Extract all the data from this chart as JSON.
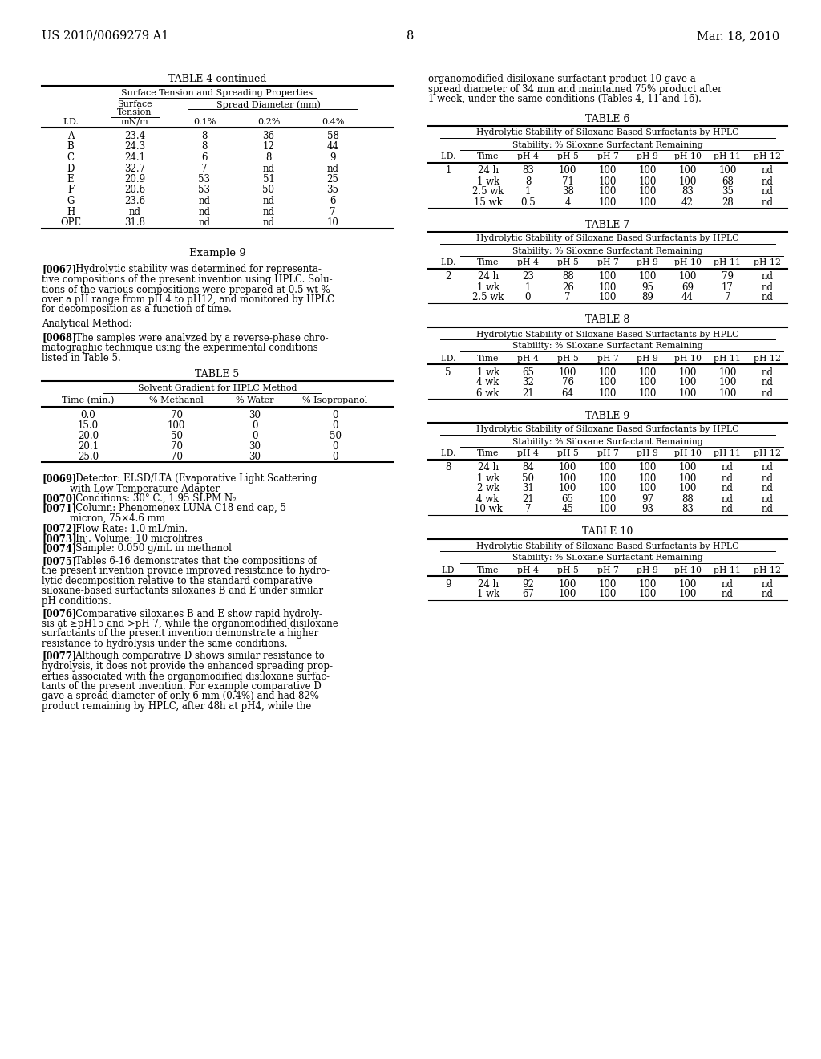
{
  "header_left": "US 2010/0069279 A1",
  "header_right": "Mar. 18, 2010",
  "page_number": "8",
  "background_color": "#ffffff",
  "table4_title": "TABLE 4-continued",
  "table4_subtitle": "Surface Tension and Spreading Properties",
  "table4_rows": [
    [
      "A",
      "23.4",
      "8",
      "36",
      "58"
    ],
    [
      "B",
      "24.3",
      "8",
      "12",
      "44"
    ],
    [
      "C",
      "24.1",
      "6",
      "8",
      "9"
    ],
    [
      "D",
      "32.7",
      "7",
      "nd",
      "nd"
    ],
    [
      "E",
      "20.9",
      "53",
      "51",
      "25"
    ],
    [
      "F",
      "20.6",
      "53",
      "50",
      "35"
    ],
    [
      "G",
      "23.6",
      "nd",
      "nd",
      "6"
    ],
    [
      "H",
      "nd",
      "nd",
      "nd",
      "7"
    ],
    [
      "OPE",
      "31.8",
      "nd",
      "nd",
      "10"
    ]
  ],
  "example9_title": "Example 9",
  "table5_title": "TABLE 5",
  "table5_subtitle": "Solvent Gradient for HPLC Method",
  "table5_col_headers": [
    "Time (min.)",
    "% Methanol",
    "% Water",
    "% Isopropanol"
  ],
  "table5_rows": [
    [
      "0.0",
      "70",
      "30",
      "0"
    ],
    [
      "15.0",
      "100",
      "0",
      "0"
    ],
    [
      "20.0",
      "50",
      "0",
      "50"
    ],
    [
      "20.1",
      "70",
      "30",
      "0"
    ],
    [
      "25.0",
      "70",
      "30",
      "0"
    ]
  ],
  "right_para_intro_lines": [
    "organomodified disiloxane surfactant product 10 gave a",
    "spread diameter of 34 mm and maintained 75% product after",
    "1 week, under the same conditions (Tables 4, 11 and 16)."
  ],
  "table6_title": "TABLE 6",
  "table6_subtitle": "Hydrolytic Stability of Siloxane Based Surfactants by HPLC",
  "table6_sub2": "Stability: % Siloxane Surfactant Remaining",
  "table6_col_headers": [
    "I.D.",
    "Time",
    "pH 4",
    "pH 5",
    "pH 7",
    "pH 9",
    "pH 10",
    "pH 11",
    "pH 12"
  ],
  "table6_rows": [
    [
      "1",
      "24 h",
      "83",
      "100",
      "100",
      "100",
      "100",
      "100",
      "nd"
    ],
    [
      "",
      "1 wk",
      "8",
      "71",
      "100",
      "100",
      "100",
      "68",
      "nd"
    ],
    [
      "",
      "2.5 wk",
      "1",
      "38",
      "100",
      "100",
      "83",
      "35",
      "nd"
    ],
    [
      "",
      "15 wk",
      "0.5",
      "4",
      "100",
      "100",
      "42",
      "28",
      "nd"
    ]
  ],
  "table7_title": "TABLE 7",
  "table7_subtitle": "Hydrolytic Stability of Siloxane Based Surfactants by HPLC",
  "table7_sub2": "Stability: % Siloxane Surfactant Remaining",
  "table7_col_headers": [
    "I.D.",
    "Time",
    "pH 4",
    "pH 5",
    "pH 7",
    "pH 9",
    "pH 10",
    "pH 11",
    "pH 12"
  ],
  "table7_rows": [
    [
      "2",
      "24 h",
      "23",
      "88",
      "100",
      "100",
      "100",
      "79",
      "nd"
    ],
    [
      "",
      "1 wk",
      "1",
      "26",
      "100",
      "95",
      "69",
      "17",
      "nd"
    ],
    [
      "",
      "2.5 wk",
      "0",
      "7",
      "100",
      "89",
      "44",
      "7",
      "nd"
    ]
  ],
  "table8_title": "TABLE 8",
  "table8_subtitle": "Hydrolytic Stability of Siloxane Based Surfactants by HPLC",
  "table8_sub2": "Stability: % Siloxane Surfactant Remaining",
  "table8_col_headers": [
    "I.D.",
    "Time",
    "pH 4",
    "pH 5",
    "pH 7",
    "pH 9",
    "pH 10",
    "pH 11",
    "pH 12"
  ],
  "table8_rows": [
    [
      "5",
      "1 wk",
      "65",
      "100",
      "100",
      "100",
      "100",
      "100",
      "nd"
    ],
    [
      "",
      "4 wk",
      "32",
      "76",
      "100",
      "100",
      "100",
      "100",
      "nd"
    ],
    [
      "",
      "6 wk",
      "21",
      "64",
      "100",
      "100",
      "100",
      "100",
      "nd"
    ]
  ],
  "table9_title": "TABLE 9",
  "table9_subtitle": "Hydrolytic Stability of Siloxane Based Surfactants by HPLC",
  "table9_sub2": "Stability: % Siloxane Surfactant Remaining",
  "table9_col_headers": [
    "I.D.",
    "Time",
    "pH 4",
    "pH 5",
    "pH 7",
    "pH 9",
    "pH 10",
    "pH 11",
    "pH 12"
  ],
  "table9_rows": [
    [
      "8",
      "24 h",
      "84",
      "100",
      "100",
      "100",
      "100",
      "nd",
      "nd"
    ],
    [
      "",
      "1 wk",
      "50",
      "100",
      "100",
      "100",
      "100",
      "nd",
      "nd"
    ],
    [
      "",
      "2 wk",
      "31",
      "100",
      "100",
      "100",
      "100",
      "nd",
      "nd"
    ],
    [
      "",
      "4 wk",
      "21",
      "65",
      "100",
      "97",
      "88",
      "nd",
      "nd"
    ],
    [
      "",
      "10 wk",
      "7",
      "45",
      "100",
      "93",
      "83",
      "nd",
      "nd"
    ]
  ],
  "table10_title": "TABLE 10",
  "table10_subtitle": "Hydrolytic Stability of Siloxane Based Surfactants by HPLC",
  "table10_sub2": "Stability: % Siloxane Surfactant Remaining",
  "table10_col_headers": [
    "I.D",
    "Time",
    "pH 4",
    "pH 5",
    "pH 7",
    "pH 9",
    "pH 10",
    "pH 11",
    "pH 12"
  ],
  "table10_rows": [
    [
      "9",
      "24 h",
      "92",
      "100",
      "100",
      "100",
      "100",
      "nd",
      "nd"
    ],
    [
      "",
      "1 wk",
      "67",
      "100",
      "100",
      "100",
      "100",
      "nd",
      "nd"
    ]
  ]
}
